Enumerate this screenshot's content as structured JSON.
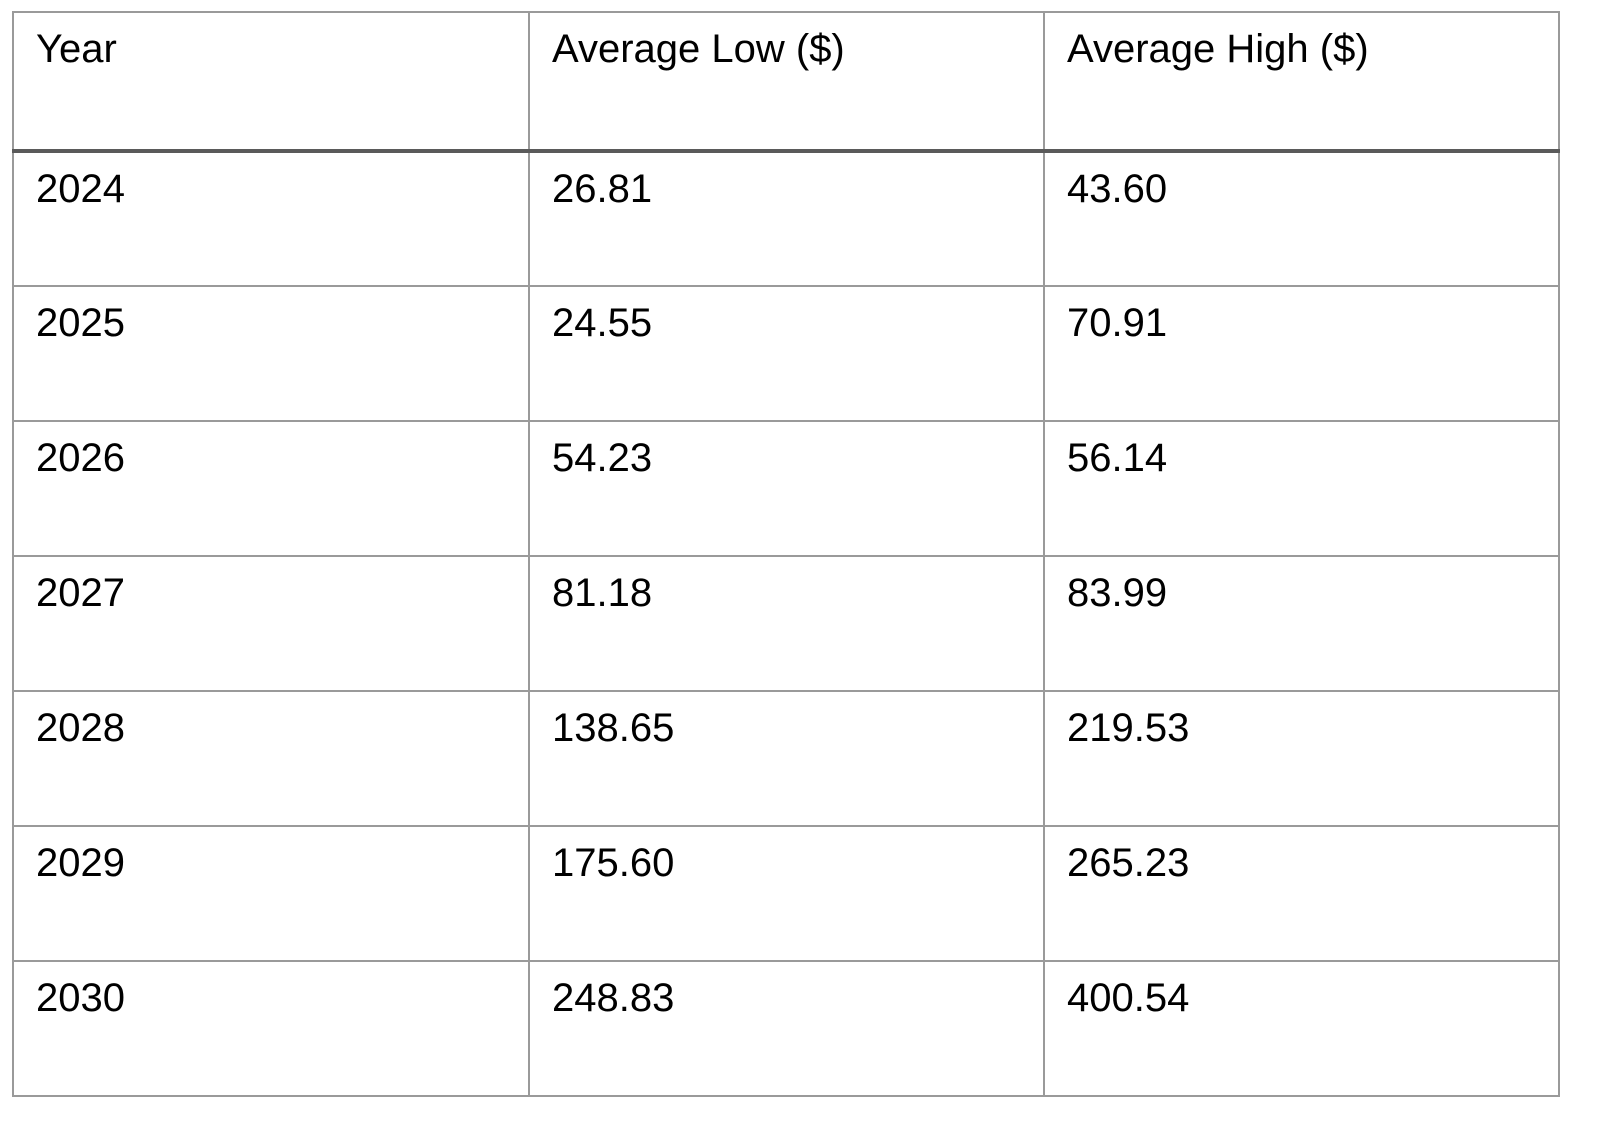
{
  "table": {
    "columns": [
      "Year",
      "Average Low ($)",
      "Average High ($)"
    ],
    "rows": [
      [
        "2024",
        "26.81",
        "43.60"
      ],
      [
        "2025",
        "24.55",
        "70.91"
      ],
      [
        "2026",
        "54.23",
        "56.14"
      ],
      [
        "2027",
        "81.18",
        "83.99"
      ],
      [
        "2028",
        "138.65",
        "219.53"
      ],
      [
        "2029",
        "175.60",
        "265.23"
      ],
      [
        "2030",
        "248.83",
        "400.54"
      ]
    ]
  },
  "colors": {
    "border": "#9a9a9a",
    "header_rule": "#5a5a5a",
    "text": "#000000",
    "background": "#ffffff"
  }
}
